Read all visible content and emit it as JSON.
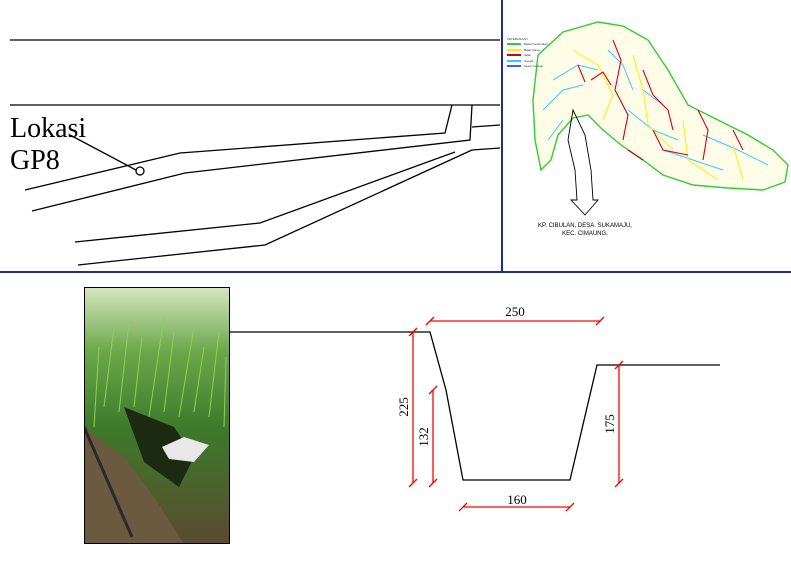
{
  "location_label": {
    "line1": "Lokasi",
    "line2": "GP8"
  },
  "map": {
    "legend_title": "KETERANGAN",
    "legend": [
      {
        "label": "Batas Kecamatan",
        "color": "#33cc33"
      },
      {
        "label": "Batas Desa",
        "color": "#ffee00"
      },
      {
        "label": "Jalan",
        "color": "#cc0022"
      },
      {
        "label": "Sungai",
        "color": "#33ccff"
      },
      {
        "label": "Sesar Geologi",
        "color": "#3366ff"
      }
    ],
    "caption_line1": "KP. CIBULAN, DESA. SUKAMAJU,",
    "caption_line2": "KEC. CIMAUNG."
  },
  "channel_profile": {
    "top_width": "250",
    "bottom_width": "160",
    "left_total_depth": "225",
    "left_lower_depth": "132",
    "right_depth": "175",
    "dimension_color": "#ff0000"
  }
}
